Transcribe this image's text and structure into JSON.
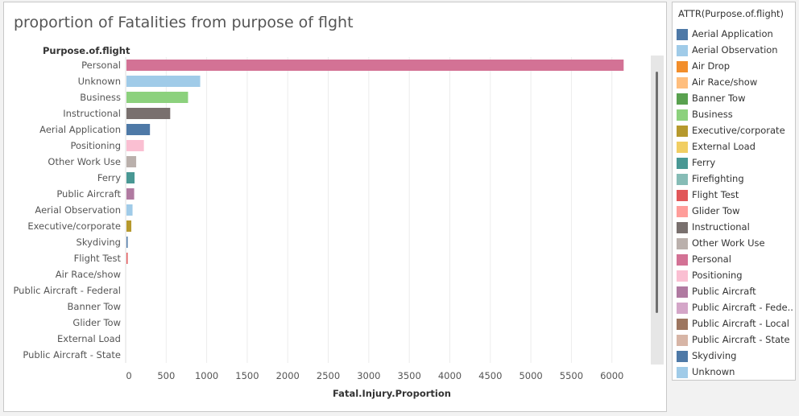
{
  "chart_data": {
    "type": "bar",
    "orientation": "horizontal",
    "title": "proportion of Fatalities from purpose of flght",
    "row_header": "Purpose.of.flight",
    "xlabel": "Fatal.Injury.Proportion",
    "xlim": [
      0,
      6450
    ],
    "xticks": [
      0,
      500,
      1000,
      1500,
      2000,
      2500,
      3000,
      3500,
      4000,
      4500,
      5000,
      5500,
      6000
    ],
    "grid": "vertical",
    "categories": [
      "Personal",
      "Unknown",
      "Business",
      "Instructional",
      "Aerial Application",
      "Positioning",
      "Other Work Use",
      "Ferry",
      "Public Aircraft",
      "Aerial Observation",
      "Executive/corporate",
      "Skydiving",
      "Flight Test",
      "Air Race/show",
      "Public Aircraft - Federal",
      "Banner Tow",
      "Glider Tow",
      "External Load",
      "Public Aircraft - State"
    ],
    "values": [
      6135,
      910,
      760,
      540,
      290,
      215,
      120,
      100,
      95,
      75,
      60,
      15,
      10,
      0,
      0,
      0,
      0,
      0,
      0
    ],
    "colors": [
      "#d37295",
      "#a0cbe8",
      "#8cd17d",
      "#79706e",
      "#4e79a7",
      "#fabfd2",
      "#bab0ac",
      "#499894",
      "#b07aa1",
      "#a0cbe8",
      "#b6992d",
      "#4e79a7",
      "#e15759",
      "#ffbe7d",
      "#d4a6c8",
      "#59a14f",
      "#ff9d9a",
      "#f1ce63",
      "#d7b5a6"
    ]
  },
  "legend": {
    "title": "ATTR(Purpose.of.flight)",
    "items": [
      {
        "label": "Aerial Application",
        "color": "#4e79a7"
      },
      {
        "label": "Aerial Observation",
        "color": "#a0cbe8"
      },
      {
        "label": "Air Drop",
        "color": "#f28e2b"
      },
      {
        "label": "Air Race/show",
        "color": "#ffbe7d"
      },
      {
        "label": "Banner Tow",
        "color": "#59a14f"
      },
      {
        "label": "Business",
        "color": "#8cd17d"
      },
      {
        "label": "Executive/corporate",
        "color": "#b6992d"
      },
      {
        "label": "External Load",
        "color": "#f1ce63"
      },
      {
        "label": "Ferry",
        "color": "#499894"
      },
      {
        "label": "Firefighting",
        "color": "#86bcb6"
      },
      {
        "label": "Flight Test",
        "color": "#e15759"
      },
      {
        "label": "Glider Tow",
        "color": "#ff9d9a"
      },
      {
        "label": "Instructional",
        "color": "#79706e"
      },
      {
        "label": "Other Work Use",
        "color": "#bab0ac"
      },
      {
        "label": "Personal",
        "color": "#d37295"
      },
      {
        "label": "Positioning",
        "color": "#fabfd2"
      },
      {
        "label": "Public Aircraft",
        "color": "#b07aa1"
      },
      {
        "label": "Public Aircraft - Fede..",
        "color": "#d4a6c8"
      },
      {
        "label": "Public Aircraft - Local",
        "color": "#9d7660"
      },
      {
        "label": "Public Aircraft - State",
        "color": "#d7b5a6"
      },
      {
        "label": "Skydiving",
        "color": "#4e79a7"
      },
      {
        "label": "Unknown",
        "color": "#a0cbe8"
      }
    ]
  }
}
